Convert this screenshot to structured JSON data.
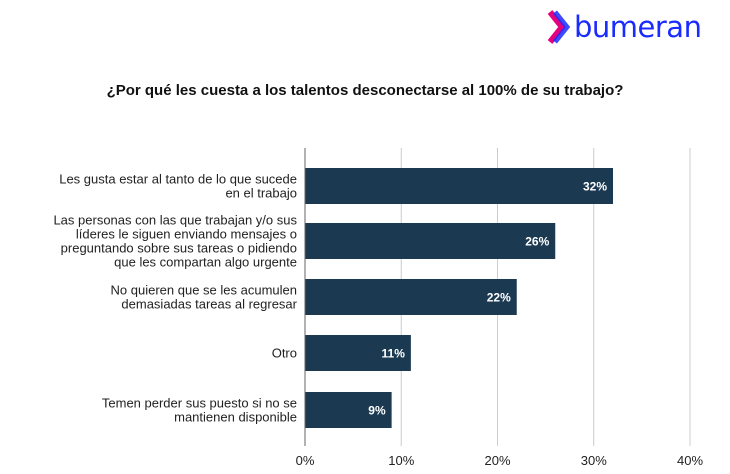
{
  "brand": {
    "name": "bumeran",
    "color": "#1a2bff",
    "accent": "#e5007e"
  },
  "chart_data": {
    "type": "bar",
    "orientation": "horizontal",
    "title": "¿Por qué les cuesta a los talentos desconectarse al 100% de su trabajo?",
    "categories": [
      [
        "Les gusta estar al tanto de lo que sucede",
        "en el trabajo"
      ],
      [
        "Las personas con las que trabajan y/o sus",
        "líderes le siguen enviando mensajes o",
        "preguntando sobre sus tareas o pidiendo",
        "que les compartan algo urgente"
      ],
      [
        "No quieren que se les acumulen",
        "demasiadas tareas al regresar"
      ],
      [
        "Otro"
      ],
      [
        "Temen perder sus puesto si no se",
        "mantienen disponible"
      ]
    ],
    "values": [
      32,
      26,
      22,
      11,
      9
    ],
    "value_labels": [
      "32%",
      "26%",
      "22%",
      "11%",
      "9%"
    ],
    "xlim": [
      0,
      40
    ],
    "xticks": [
      0,
      10,
      20,
      30,
      40
    ],
    "xtick_labels": [
      "0%",
      "10%",
      "20%",
      "30%",
      "40%"
    ],
    "grid": true,
    "bar_color": "#1b3a52",
    "grid_color": "#cccccc"
  }
}
